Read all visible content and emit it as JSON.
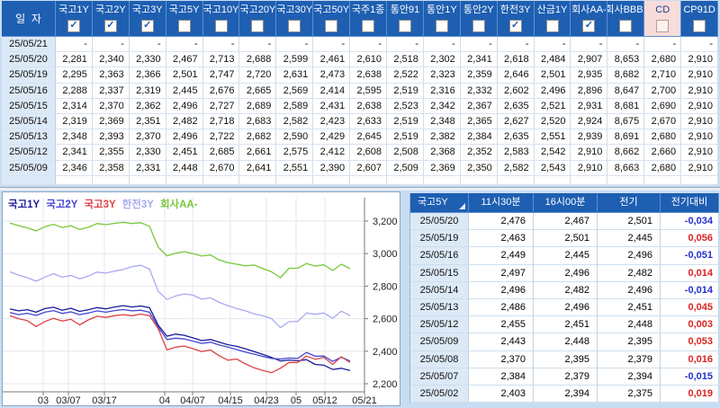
{
  "colors": {
    "header_bg": "#1e5fb2",
    "highlight_column_bg": "#f7dcda",
    "date_column_bg": "#dce9f6",
    "positive_diff": "#d92323",
    "negative_diff": "#2330cc"
  },
  "top_table": {
    "date_header": "일  자",
    "columns": [
      {
        "label": "국고1Y",
        "checked": true,
        "highlighted": false
      },
      {
        "label": "국고2Y",
        "checked": true,
        "highlighted": false
      },
      {
        "label": "국고3Y",
        "checked": true,
        "highlighted": false
      },
      {
        "label": "국고5Y",
        "checked": false,
        "highlighted": false
      },
      {
        "label": "국고10Y",
        "checked": false,
        "highlighted": false
      },
      {
        "label": "국고20Y",
        "checked": false,
        "highlighted": false
      },
      {
        "label": "국고30Y",
        "checked": false,
        "highlighted": false
      },
      {
        "label": "국고50Y",
        "checked": false,
        "highlighted": false
      },
      {
        "label": "국주1종",
        "checked": false,
        "highlighted": false
      },
      {
        "label": "통안91",
        "checked": false,
        "highlighted": false
      },
      {
        "label": "통안1Y",
        "checked": false,
        "highlighted": false
      },
      {
        "label": "통안2Y",
        "checked": false,
        "highlighted": false
      },
      {
        "label": "한전3Y",
        "checked": true,
        "highlighted": false
      },
      {
        "label": "산금1Y",
        "checked": false,
        "highlighted": false
      },
      {
        "label": "회사AA-",
        "checked": true,
        "highlighted": false
      },
      {
        "label": "회사BBB-",
        "checked": false,
        "highlighted": false
      },
      {
        "label": "CD",
        "checked": false,
        "highlighted": true
      },
      {
        "label": "CP91D",
        "checked": false,
        "highlighted": false
      }
    ],
    "rows": [
      {
        "date": "25/05/21",
        "values": [
          "-",
          "-",
          "-",
          "-",
          "-",
          "-",
          "-",
          "-",
          "-",
          "-",
          "-",
          "-",
          "-",
          "-",
          "-",
          "-",
          "-",
          "-"
        ]
      },
      {
        "date": "25/05/20",
        "values": [
          "2,281",
          "2,340",
          "2,330",
          "2,467",
          "2,713",
          "2,688",
          "2,599",
          "2,461",
          "2,610",
          "2,518",
          "2,302",
          "2,341",
          "2,618",
          "2,484",
          "2,907",
          "8,653",
          "2,680",
          "2,910"
        ]
      },
      {
        "date": "25/05/19",
        "values": [
          "2,295",
          "2,363",
          "2,366",
          "2,501",
          "2,747",
          "2,720",
          "2,631",
          "2,473",
          "2,638",
          "2,522",
          "2,323",
          "2,359",
          "2,646",
          "2,501",
          "2,935",
          "8,682",
          "2,710",
          "2,910"
        ]
      },
      {
        "date": "25/05/16",
        "values": [
          "2,288",
          "2,337",
          "2,319",
          "2,445",
          "2,676",
          "2,665",
          "2,569",
          "2,414",
          "2,595",
          "2,519",
          "2,316",
          "2,332",
          "2,602",
          "2,496",
          "2,896",
          "8,647",
          "2,700",
          "2,910"
        ]
      },
      {
        "date": "25/05/15",
        "values": [
          "2,314",
          "2,370",
          "2,362",
          "2,496",
          "2,727",
          "2,689",
          "2,589",
          "2,431",
          "2,638",
          "2,523",
          "2,342",
          "2,367",
          "2,635",
          "2,521",
          "2,931",
          "8,681",
          "2,690",
          "2,910"
        ]
      },
      {
        "date": "25/05/14",
        "values": [
          "2,319",
          "2,369",
          "2,351",
          "2,482",
          "2,718",
          "2,683",
          "2,582",
          "2,423",
          "2,633",
          "2,519",
          "2,348",
          "2,365",
          "2,627",
          "2,520",
          "2,924",
          "8,675",
          "2,670",
          "2,910"
        ]
      },
      {
        "date": "25/05/13",
        "values": [
          "2,348",
          "2,393",
          "2,370",
          "2,496",
          "2,722",
          "2,682",
          "2,590",
          "2,429",
          "2,645",
          "2,519",
          "2,382",
          "2,384",
          "2,635",
          "2,551",
          "2,939",
          "8,691",
          "2,680",
          "2,910"
        ]
      },
      {
        "date": "25/05/12",
        "values": [
          "2,341",
          "2,355",
          "2,330",
          "2,451",
          "2,685",
          "2,661",
          "2,575",
          "2,412",
          "2,608",
          "2,508",
          "2,368",
          "2,352",
          "2,583",
          "2,542",
          "2,910",
          "8,662",
          "2,660",
          "2,910"
        ]
      },
      {
        "date": "25/05/09",
        "values": [
          "2,346",
          "2,358",
          "2,331",
          "2,448",
          "2,670",
          "2,641",
          "2,551",
          "2,390",
          "2,607",
          "2,509",
          "2,369",
          "2,350",
          "2,582",
          "2,543",
          "2,910",
          "8,663",
          "2,680",
          "2,910"
        ]
      }
    ]
  },
  "chart_data": {
    "type": "line",
    "title": "",
    "xlabel": "",
    "ylabel": "",
    "ylim": [
      2200,
      3200
    ],
    "grid": true,
    "legend_position": "top-left",
    "y_ticks": [
      "2,200",
      "2,400",
      "2,600",
      "2,800",
      "3,000",
      "3,200"
    ],
    "x_ticks": [
      "03",
      "03/07",
      "03/17",
      "04",
      "04/07",
      "04/15",
      "04/23",
      "05",
      "05/12",
      "05/21"
    ],
    "x_tick_pos": [
      0.112,
      0.182,
      0.281,
      0.448,
      0.525,
      0.629,
      0.729,
      0.811,
      0.891,
      1.0
    ],
    "series": [
      {
        "name": "국고1Y",
        "color": "#1a1a99",
        "values": [
          2660,
          2648,
          2655,
          2640,
          2662,
          2670,
          2652,
          2664,
          2645,
          2655,
          2668,
          2660,
          2672,
          2680,
          2672,
          2678,
          2668,
          2560,
          2492,
          2505,
          2498,
          2482,
          2465,
          2472,
          2455,
          2440,
          2430,
          2415,
          2398,
          2380,
          2362,
          2340,
          2346,
          2341,
          2348,
          2319,
          2314,
          2288,
          2295,
          2281
        ]
      },
      {
        "name": "국고2Y",
        "color": "#4343d6",
        "values": [
          2638,
          2625,
          2633,
          2620,
          2640,
          2650,
          2632,
          2642,
          2625,
          2635,
          2648,
          2640,
          2650,
          2656,
          2648,
          2652,
          2640,
          2548,
          2472,
          2480,
          2475,
          2462,
          2448,
          2455,
          2438,
          2425,
          2410,
          2395,
          2382,
          2368,
          2355,
          2352,
          2358,
          2355,
          2393,
          2369,
          2370,
          2337,
          2363,
          2340
        ]
      },
      {
        "name": "국고3Y",
        "color": "#dd4343",
        "values": [
          2618,
          2600,
          2588,
          2552,
          2582,
          2602,
          2585,
          2596,
          2562,
          2592,
          2615,
          2608,
          2618,
          2625,
          2618,
          2628,
          2618,
          2538,
          2408,
          2425,
          2432,
          2415,
          2398,
          2408,
          2372,
          2345,
          2352,
          2322,
          2298,
          2282,
          2268,
          2295,
          2331,
          2330,
          2370,
          2351,
          2362,
          2319,
          2366,
          2330
        ]
      },
      {
        "name": "한전3Y",
        "color": "#a9a9f2",
        "values": [
          2888,
          2868,
          2852,
          2830,
          2856,
          2876,
          2855,
          2866,
          2846,
          2862,
          2886,
          2880,
          2892,
          2902,
          2920,
          2928,
          2905,
          2768,
          2718,
          2740,
          2752,
          2745,
          2720,
          2728,
          2700,
          2680,
          2662,
          2648,
          2630,
          2618,
          2600,
          2545,
          2582,
          2583,
          2635,
          2627,
          2635,
          2602,
          2646,
          2618
        ]
      },
      {
        "name": "회사AA-",
        "color": "#77c83c",
        "values": [
          3188,
          3172,
          3158,
          3140,
          3165,
          3180,
          3160,
          3172,
          3148,
          3162,
          3185,
          3178,
          3186,
          3192,
          3185,
          3190,
          3168,
          3040,
          2986,
          3002,
          3012,
          3000,
          2985,
          2992,
          2960,
          2945,
          2935,
          2925,
          2930,
          2908,
          2888,
          2852,
          2910,
          2910,
          2939,
          2924,
          2931,
          2896,
          2935,
          2907
        ]
      }
    ]
  },
  "detail_table": {
    "headers": [
      "국고5Y",
      "11시30분",
      "16시00분",
      "전기",
      "전기대비"
    ],
    "rows": [
      {
        "date": "25/05/20",
        "t1130": "2,476",
        "t1600": "2,467",
        "prev": "2,501",
        "diff": "-0,034"
      },
      {
        "date": "25/05/19",
        "t1130": "2,463",
        "t1600": "2,501",
        "prev": "2,445",
        "diff": "0,056"
      },
      {
        "date": "25/05/16",
        "t1130": "2,449",
        "t1600": "2,445",
        "prev": "2,496",
        "diff": "-0,051"
      },
      {
        "date": "25/05/15",
        "t1130": "2,497",
        "t1600": "2,496",
        "prev": "2,482",
        "diff": "0,014"
      },
      {
        "date": "25/05/14",
        "t1130": "2,496",
        "t1600": "2,482",
        "prev": "2,496",
        "diff": "-0,014"
      },
      {
        "date": "25/05/13",
        "t1130": "2,486",
        "t1600": "2,496",
        "prev": "2,451",
        "diff": "0,045"
      },
      {
        "date": "25/05/12",
        "t1130": "2,455",
        "t1600": "2,451",
        "prev": "2,448",
        "diff": "0,003"
      },
      {
        "date": "25/05/09",
        "t1130": "2,443",
        "t1600": "2,448",
        "prev": "2,395",
        "diff": "0,053"
      },
      {
        "date": "25/05/08",
        "t1130": "2,370",
        "t1600": "2,395",
        "prev": "2,379",
        "diff": "0,016"
      },
      {
        "date": "25/05/07",
        "t1130": "2,384",
        "t1600": "2,379",
        "prev": "2,394",
        "diff": "-0,015"
      },
      {
        "date": "25/05/02",
        "t1130": "2,403",
        "t1600": "2,394",
        "prev": "2,375",
        "diff": "0,019"
      }
    ]
  }
}
